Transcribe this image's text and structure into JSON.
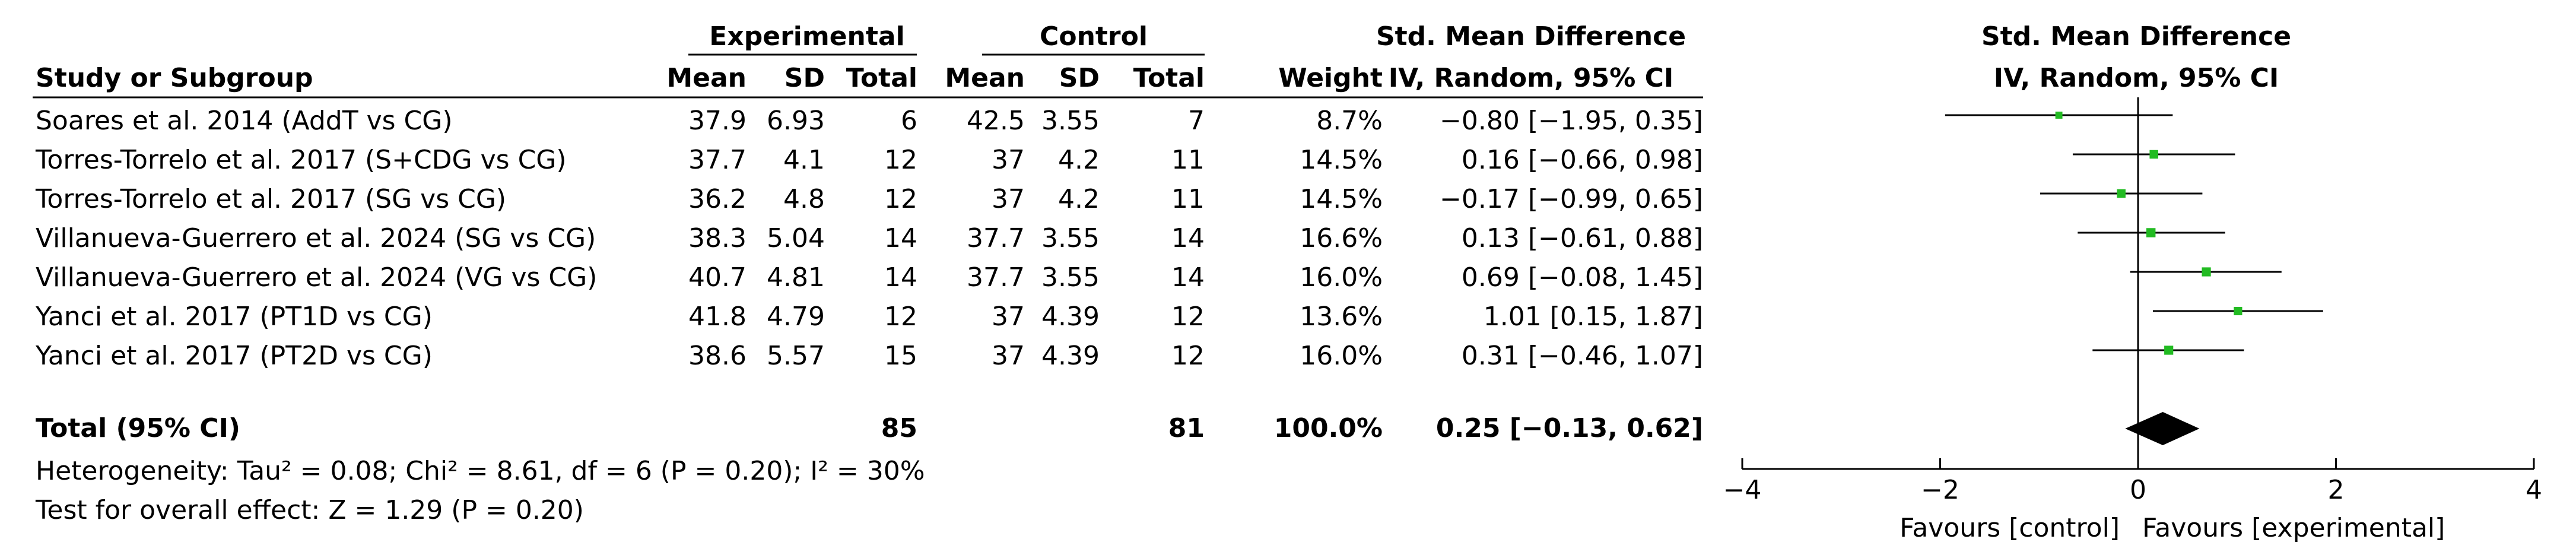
{
  "headers": {
    "group_experimental": "Experimental",
    "group_control": "Control",
    "smd_title": "Std. Mean Difference",
    "smd_subtitle": "IV, Random, 95% CI",
    "plot_title": "Std. Mean Difference",
    "plot_subtitle": "IV, Random, 95% CI",
    "study": "Study or Subgroup",
    "mean": "Mean",
    "sd": "SD",
    "total": "Total",
    "weight": "Weight"
  },
  "studies": [
    {
      "name": "Soares et al. 2014 (AddT vs CG)",
      "e_mean": "37.9",
      "e_sd": "6.93",
      "e_total": "6",
      "c_mean": "42.5",
      "c_sd": "3.55",
      "c_total": "7",
      "weight": "8.7%",
      "ci_text": "−0.80 [−1.95, 0.35]"
    },
    {
      "name": "Torres-Torrelo et al. 2017 (S+CDG vs CG)",
      "e_mean": "37.7",
      "e_sd": "4.1",
      "e_total": "12",
      "c_mean": "37",
      "c_sd": "4.2",
      "c_total": "11",
      "weight": "14.5%",
      "ci_text": "0.16 [−0.66, 0.98]"
    },
    {
      "name": "Torres-Torrelo et al. 2017 (SG vs CG)",
      "e_mean": "36.2",
      "e_sd": "4.8",
      "e_total": "12",
      "c_mean": "37",
      "c_sd": "4.2",
      "c_total": "11",
      "weight": "14.5%",
      "ci_text": "−0.17 [−0.99, 0.65]"
    },
    {
      "name": "Villanueva-Guerrero et al. 2024 (SG vs CG)",
      "e_mean": "38.3",
      "e_sd": "5.04",
      "e_total": "14",
      "c_mean": "37.7",
      "c_sd": "3.55",
      "c_total": "14",
      "weight": "16.6%",
      "ci_text": "0.13 [−0.61, 0.88]"
    },
    {
      "name": "Villanueva-Guerrero et al. 2024 (VG vs CG)",
      "e_mean": "40.7",
      "e_sd": "4.81",
      "e_total": "14",
      "c_mean": "37.7",
      "c_sd": "3.55",
      "c_total": "14",
      "weight": "16.0%",
      "ci_text": "0.69 [−0.08, 1.45]"
    },
    {
      "name": "Yanci et al. 2017 (PT1D vs CG)",
      "e_mean": "41.8",
      "e_sd": "4.79",
      "e_total": "12",
      "c_mean": "37",
      "c_sd": "4.39",
      "c_total": "12",
      "weight": "13.6%",
      "ci_text": "1.01 [0.15, 1.87]"
    },
    {
      "name": "Yanci et al. 2017 (PT2D vs CG)",
      "e_mean": "38.6",
      "e_sd": "5.57",
      "e_total": "15",
      "c_mean": "37",
      "c_sd": "4.39",
      "c_total": "12",
      "weight": "16.0%",
      "ci_text": "0.31 [−0.46, 1.07]"
    }
  ],
  "total_row": {
    "label": "Total (95% CI)",
    "e_total": "85",
    "c_total": "81",
    "weight": "100.0%",
    "ci_text": "0.25 [−0.13, 0.62]"
  },
  "heterogeneity": "Heterogeneity: Tau² = 0.08; Chi² = 8.61, df = 6 (P = 0.20); I² = 30%",
  "overall_effect": "Test for overall effect: Z = 1.29 (P = 0.20)",
  "favours_left": "Favours [control]",
  "favours_right": "Favours [experimental]",
  "colors": {
    "marker": "#22bb22",
    "diamond": "#000000",
    "text": "#000000"
  },
  "chart_data": {
    "type": "forest",
    "xlim": [
      -4,
      4
    ],
    "xticks": [
      -4,
      -2,
      0,
      2,
      4
    ],
    "xtick_labels": [
      "−4",
      "−2",
      "0",
      "2",
      "4"
    ],
    "reference_line": 0,
    "points": [
      {
        "est": -0.8,
        "lo": -1.95,
        "hi": 0.35,
        "weight": 8.7
      },
      {
        "est": 0.16,
        "lo": -0.66,
        "hi": 0.98,
        "weight": 14.5
      },
      {
        "est": -0.17,
        "lo": -0.99,
        "hi": 0.65,
        "weight": 14.5
      },
      {
        "est": 0.13,
        "lo": -0.61,
        "hi": 0.88,
        "weight": 16.6
      },
      {
        "est": 0.69,
        "lo": -0.08,
        "hi": 1.45,
        "weight": 16.0
      },
      {
        "est": 1.01,
        "lo": 0.15,
        "hi": 1.87,
        "weight": 13.6
      },
      {
        "est": 0.31,
        "lo": -0.46,
        "hi": 1.07,
        "weight": 16.0
      }
    ],
    "pooled": {
      "est": 0.25,
      "lo": -0.13,
      "hi": 0.62
    }
  }
}
